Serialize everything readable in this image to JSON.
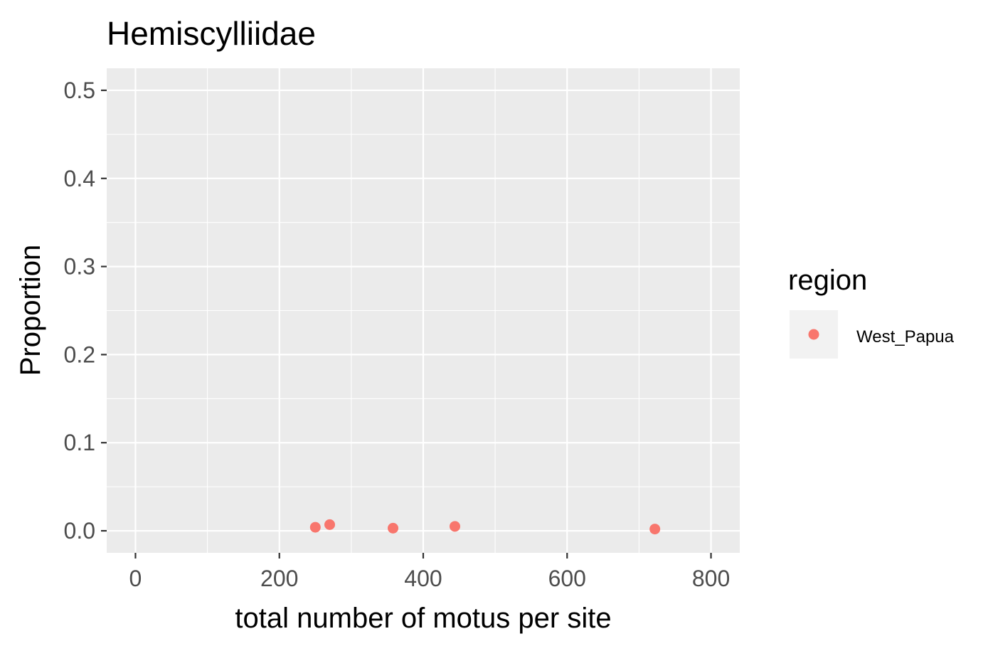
{
  "chart_data": {
    "type": "scatter",
    "title": "Hemiscylliidae",
    "xlabel": "total number of motus per site",
    "ylabel": "Proportion",
    "xlim": [
      -40,
      840
    ],
    "ylim": [
      -0.025,
      0.525
    ],
    "x_ticks": [
      0,
      200,
      400,
      600,
      800
    ],
    "x_tick_labels": [
      "0",
      "200",
      "400",
      "600",
      "800"
    ],
    "y_ticks": [
      0.0,
      0.1,
      0.2,
      0.3,
      0.4,
      0.5
    ],
    "y_tick_labels": [
      "0.0",
      "0.1",
      "0.2",
      "0.3",
      "0.4",
      "0.5"
    ],
    "grid": true,
    "legend": {
      "title": "region",
      "position": "right",
      "entries": [
        {
          "label": "West_Papua",
          "color": "#f8766d"
        }
      ]
    },
    "series": [
      {
        "name": "West_Papua",
        "color": "#f8766d",
        "points": [
          {
            "x": 250,
            "y": 0.004
          },
          {
            "x": 270,
            "y": 0.007
          },
          {
            "x": 358,
            "y": 0.003
          },
          {
            "x": 444,
            "y": 0.005
          },
          {
            "x": 722,
            "y": 0.002
          }
        ]
      }
    ]
  }
}
